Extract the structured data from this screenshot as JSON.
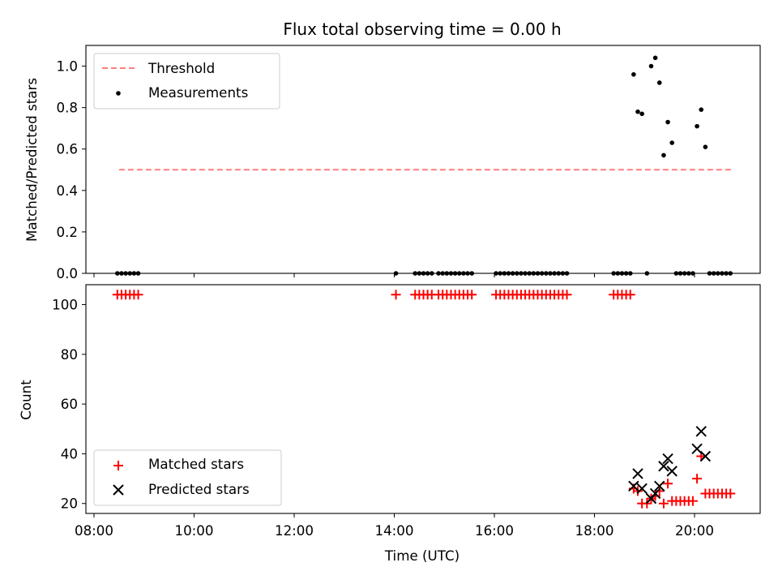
{
  "chart_data": [
    {
      "type": "scatter",
      "title": "Flux total observing time = 0.00 h",
      "xlabel": "",
      "ylabel": "Matched/Predicted stars",
      "ylim": [
        0,
        1.1
      ],
      "yticks": [
        "0.0",
        "0.2",
        "0.4",
        "0.6",
        "0.8",
        "1.0"
      ],
      "legend": {
        "placement": "top-left",
        "entries": [
          "Threshold",
          "Measurements"
        ]
      },
      "threshold": {
        "name": "Threshold",
        "y": 0.5,
        "x_range": [
          "08:30",
          "20:45"
        ],
        "color": "#ff7f7f",
        "style": "dashed"
      },
      "series": [
        {
          "name": "Measurements",
          "color": "#000000",
          "marker": "dot",
          "points": [
            [
              "08:28",
              0
            ],
            [
              "08:33",
              0
            ],
            [
              "08:38",
              0
            ],
            [
              "08:43",
              0
            ],
            [
              "08:48",
              0
            ],
            [
              "08:53",
              0
            ],
            [
              "14:02",
              0
            ],
            [
              "14:25",
              0
            ],
            [
              "14:30",
              0
            ],
            [
              "14:35",
              0
            ],
            [
              "14:40",
              0
            ],
            [
              "14:45",
              0
            ],
            [
              "14:53",
              0
            ],
            [
              "14:58",
              0
            ],
            [
              "15:03",
              0
            ],
            [
              "15:08",
              0
            ],
            [
              "15:13",
              0
            ],
            [
              "15:18",
              0
            ],
            [
              "15:23",
              0
            ],
            [
              "15:28",
              0
            ],
            [
              "15:33",
              0
            ],
            [
              "16:02",
              0
            ],
            [
              "16:07",
              0
            ],
            [
              "16:12",
              0
            ],
            [
              "16:17",
              0
            ],
            [
              "16:22",
              0
            ],
            [
              "16:27",
              0
            ],
            [
              "16:32",
              0
            ],
            [
              "16:37",
              0
            ],
            [
              "16:42",
              0
            ],
            [
              "16:47",
              0
            ],
            [
              "16:52",
              0
            ],
            [
              "16:57",
              0
            ],
            [
              "17:02",
              0
            ],
            [
              "17:07",
              0
            ],
            [
              "17:12",
              0
            ],
            [
              "17:17",
              0
            ],
            [
              "17:22",
              0
            ],
            [
              "17:27",
              0
            ],
            [
              "18:23",
              0
            ],
            [
              "18:28",
              0
            ],
            [
              "18:33",
              0
            ],
            [
              "18:38",
              0
            ],
            [
              "18:43",
              0
            ],
            [
              "18:47",
              0.96
            ],
            [
              "18:52",
              0.78
            ],
            [
              "18:57",
              0.77
            ],
            [
              "19:03",
              0
            ],
            [
              "19:08",
              1.0
            ],
            [
              "19:13",
              1.04
            ],
            [
              "19:18",
              0.92
            ],
            [
              "19:23",
              0.57
            ],
            [
              "19:28",
              0.73
            ],
            [
              "19:33",
              0.63
            ],
            [
              "19:38",
              0
            ],
            [
              "19:43",
              0
            ],
            [
              "19:48",
              0
            ],
            [
              "19:53",
              0
            ],
            [
              "19:58",
              0
            ],
            [
              "20:03",
              0.71
            ],
            [
              "20:08",
              0.79
            ],
            [
              "20:13",
              0.61
            ],
            [
              "20:18",
              0
            ],
            [
              "20:23",
              0
            ],
            [
              "20:28",
              0
            ],
            [
              "20:33",
              0
            ],
            [
              "20:38",
              0
            ],
            [
              "20:43",
              0
            ]
          ]
        }
      ]
    },
    {
      "type": "scatter",
      "title": "",
      "xlabel": "Time (UTC)",
      "ylabel": "Count",
      "ylim": [
        16,
        108
      ],
      "yticks": [
        "20",
        "40",
        "60",
        "80",
        "100"
      ],
      "xticks": [
        "08:00",
        "10:00",
        "12:00",
        "14:00",
        "16:00",
        "18:00",
        "20:00"
      ],
      "legend": {
        "placement": "bottom-left",
        "entries": [
          "Matched stars",
          "Predicted stars"
        ]
      },
      "series": [
        {
          "name": "Matched stars",
          "color": "#ff0000",
          "marker": "plus",
          "points": [
            [
              "08:28",
              104
            ],
            [
              "08:33",
              104
            ],
            [
              "08:38",
              104
            ],
            [
              "08:43",
              104
            ],
            [
              "08:48",
              104
            ],
            [
              "08:53",
              104
            ],
            [
              "14:02",
              104
            ],
            [
              "14:25",
              104
            ],
            [
              "14:30",
              104
            ],
            [
              "14:35",
              104
            ],
            [
              "14:40",
              104
            ],
            [
              "14:45",
              104
            ],
            [
              "14:53",
              104
            ],
            [
              "14:58",
              104
            ],
            [
              "15:03",
              104
            ],
            [
              "15:08",
              104
            ],
            [
              "15:13",
              104
            ],
            [
              "15:18",
              104
            ],
            [
              "15:23",
              104
            ],
            [
              "15:28",
              104
            ],
            [
              "15:33",
              104
            ],
            [
              "16:02",
              104
            ],
            [
              "16:07",
              104
            ],
            [
              "16:12",
              104
            ],
            [
              "16:17",
              104
            ],
            [
              "16:22",
              104
            ],
            [
              "16:27",
              104
            ],
            [
              "16:32",
              104
            ],
            [
              "16:37",
              104
            ],
            [
              "16:42",
              104
            ],
            [
              "16:47",
              104
            ],
            [
              "16:52",
              104
            ],
            [
              "16:57",
              104
            ],
            [
              "17:02",
              104
            ],
            [
              "17:07",
              104
            ],
            [
              "17:12",
              104
            ],
            [
              "17:17",
              104
            ],
            [
              "17:22",
              104
            ],
            [
              "17:27",
              104
            ],
            [
              "18:23",
              104
            ],
            [
              "18:28",
              104
            ],
            [
              "18:33",
              104
            ],
            [
              "18:38",
              104
            ],
            [
              "18:43",
              104
            ],
            [
              "18:47",
              26
            ],
            [
              "18:52",
              25
            ],
            [
              "18:57",
              20
            ],
            [
              "19:03",
              20
            ],
            [
              "19:08",
              22
            ],
            [
              "19:13",
              23
            ],
            [
              "19:18",
              25
            ],
            [
              "19:23",
              20
            ],
            [
              "19:28",
              28
            ],
            [
              "19:33",
              21
            ],
            [
              "19:38",
              21
            ],
            [
              "19:43",
              21
            ],
            [
              "19:48",
              21
            ],
            [
              "19:53",
              21
            ],
            [
              "19:58",
              21
            ],
            [
              "20:03",
              30
            ],
            [
              "20:08",
              39
            ],
            [
              "20:13",
              24
            ],
            [
              "20:18",
              24
            ],
            [
              "20:23",
              24
            ],
            [
              "20:28",
              24
            ],
            [
              "20:33",
              24
            ],
            [
              "20:38",
              24
            ],
            [
              "20:43",
              24
            ]
          ]
        },
        {
          "name": "Predicted stars",
          "color": "#000000",
          "marker": "x",
          "points": [
            [
              "18:47",
              27
            ],
            [
              "18:52",
              32
            ],
            [
              "18:57",
              26
            ],
            [
              "19:08",
              22
            ],
            [
              "19:13",
              24
            ],
            [
              "19:18",
              27
            ],
            [
              "19:23",
              35
            ],
            [
              "19:28",
              38
            ],
            [
              "19:33",
              33
            ],
            [
              "20:03",
              42
            ],
            [
              "20:08",
              49
            ],
            [
              "20:13",
              39
            ]
          ]
        }
      ]
    }
  ]
}
